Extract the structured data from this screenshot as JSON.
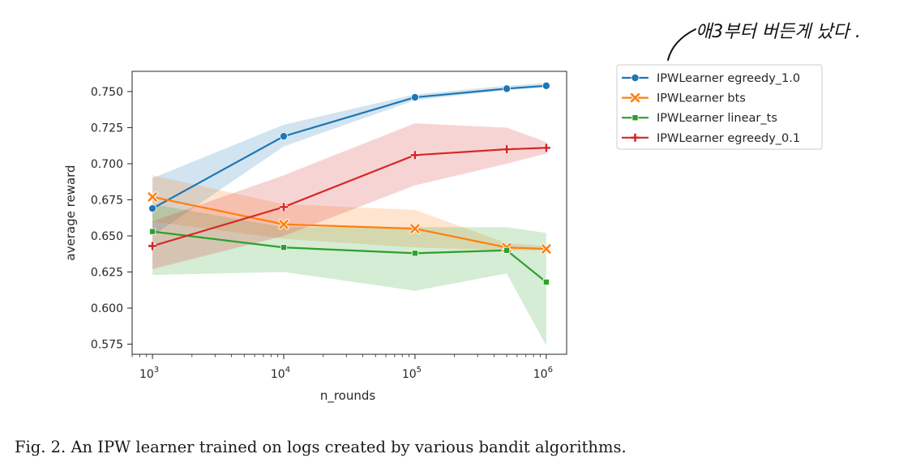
{
  "chart_data": {
    "type": "line",
    "xscale": "log",
    "x": [
      1000,
      10000,
      100000,
      500000,
      1000000
    ],
    "xticks": [
      {
        "value": 1000,
        "base": "10",
        "exp": "3"
      },
      {
        "value": 10000,
        "base": "10",
        "exp": "4"
      },
      {
        "value": 100000,
        "base": "10",
        "exp": "5"
      },
      {
        "value": 1000000,
        "base": "10",
        "exp": "6"
      }
    ],
    "xlim": [
      700,
      1430000
    ],
    "ylim": [
      0.568,
      0.764
    ],
    "yticks": [
      "0.575",
      "0.600",
      "0.625",
      "0.650",
      "0.675",
      "0.700",
      "0.725",
      "0.750"
    ],
    "xlabel": "n_rounds",
    "ylabel": "average reward",
    "grid": false,
    "legend_position": "outside-right",
    "series": [
      {
        "name": "IPWLearner egreedy_1.0",
        "color": "#1f77b4",
        "marker": "circle",
        "values": [
          0.669,
          0.719,
          0.746,
          0.752,
          0.754
        ],
        "lower": [
          0.65,
          0.712,
          0.744,
          0.751,
          0.753
        ],
        "upper": [
          0.69,
          0.727,
          0.748,
          0.754,
          0.756
        ]
      },
      {
        "name": "IPWLearner bts",
        "color": "#ff7f0e",
        "marker": "x",
        "values": [
          0.677,
          0.658,
          0.655,
          0.642,
          0.641
        ],
        "lower": [
          0.66,
          0.648,
          0.642,
          0.64,
          0.64
        ],
        "upper": [
          0.692,
          0.672,
          0.668,
          0.645,
          0.643
        ]
      },
      {
        "name": "IPWLearner linear_ts",
        "color": "#2ca02c",
        "marker": "square",
        "values": [
          0.653,
          0.642,
          0.638,
          0.64,
          0.618
        ],
        "lower": [
          0.623,
          0.625,
          0.612,
          0.624,
          0.574
        ],
        "upper": [
          0.672,
          0.656,
          0.656,
          0.656,
          0.652
        ]
      },
      {
        "name": "IPWLearner egreedy_0.1",
        "color": "#d62728",
        "marker": "plus",
        "values": [
          0.643,
          0.67,
          0.706,
          0.71,
          0.711
        ],
        "lower": [
          0.627,
          0.65,
          0.685,
          0.7,
          0.707
        ],
        "upper": [
          0.66,
          0.692,
          0.728,
          0.725,
          0.715
        ]
      }
    ]
  },
  "annotation": "애3부터 버든게 났다 .",
  "caption": "Fig. 2.  An IPW learner trained on logs created by various bandit algorithms."
}
